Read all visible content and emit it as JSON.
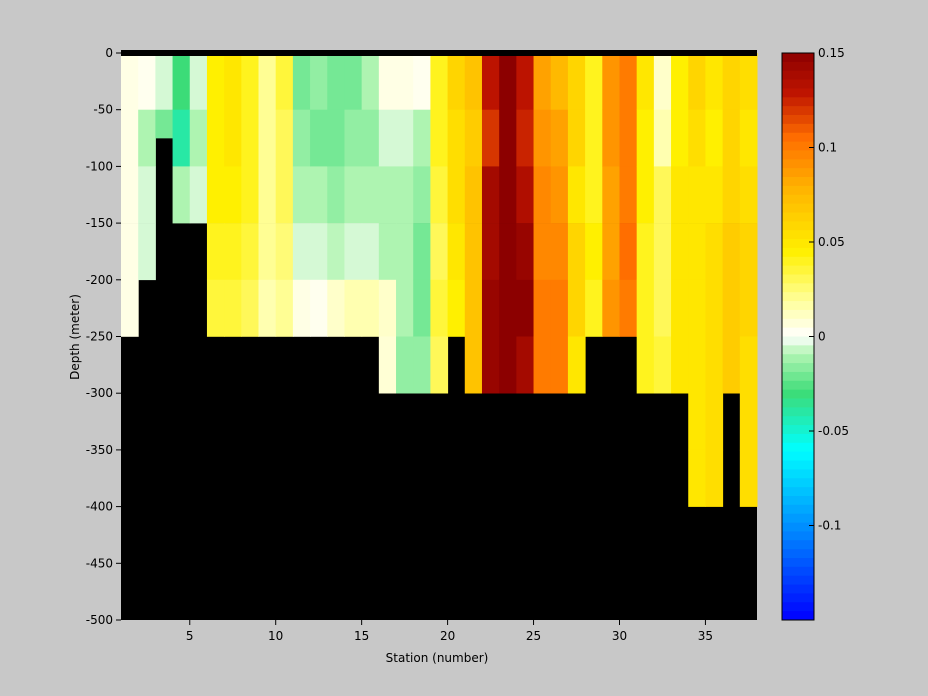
{
  "chart_data": {
    "type": "heatmap",
    "title": "",
    "xlabel": "Station (number)",
    "ylabel": "Depth (meter)",
    "xlim": [
      1,
      38
    ],
    "ylim": [
      -500,
      0
    ],
    "xticks": [
      5,
      10,
      15,
      20,
      25,
      30,
      35
    ],
    "yticks": [
      0,
      -50,
      -100,
      -150,
      -200,
      -250,
      -300,
      -350,
      -400,
      -450,
      -500
    ],
    "x_tick_labels": [
      "5",
      "10",
      "15",
      "20",
      "25",
      "30",
      "35"
    ],
    "y_tick_labels": [
      "0",
      "-50",
      "-100",
      "-150",
      "-200",
      "-250",
      "-300",
      "-350",
      "-400",
      "-450",
      "-500"
    ],
    "colorbar": {
      "range": [
        -0.15,
        0.15
      ],
      "ticks": [
        0.15,
        0.1,
        0.05,
        0,
        -0.05,
        -0.1
      ],
      "tick_labels": [
        "0.15",
        "0.1",
        "0.05",
        "0",
        "-0.05",
        "-0.1"
      ],
      "colormap": "blue-cyan-green-white-yellow-orange-red-darkred"
    },
    "mask_color": "#000000",
    "background": "#c8c8c8",
    "station_count": 37,
    "profiles": [
      {
        "station": 1,
        "max_depth": 250,
        "values": [
          0.005,
          0.005,
          0.005,
          0.005,
          0.005
        ]
      },
      {
        "station": 2,
        "max_depth": 200,
        "values": [
          0.003,
          -0.01,
          -0.005,
          -0.005
        ]
      },
      {
        "station": 3,
        "max_depth": 75,
        "values": [
          -0.005,
          -0.02
        ]
      },
      {
        "station": 4,
        "max_depth": 150,
        "values": [
          -0.03,
          -0.04,
          -0.01
        ]
      },
      {
        "station": 5,
        "max_depth": 150,
        "values": [
          -0.005,
          -0.01,
          -0.005
        ]
      },
      {
        "station": 6,
        "max_depth": 250,
        "values": [
          0.045,
          0.045,
          0.045,
          0.04,
          0.035
        ]
      },
      {
        "station": 7,
        "max_depth": 250,
        "values": [
          0.05,
          0.05,
          0.045,
          0.04,
          0.035
        ]
      },
      {
        "station": 8,
        "max_depth": 250,
        "values": [
          0.04,
          0.04,
          0.04,
          0.035,
          0.03
        ]
      },
      {
        "station": 9,
        "max_depth": 250,
        "values": [
          0.02,
          0.02,
          0.02,
          0.02,
          0.015
        ]
      },
      {
        "station": 10,
        "max_depth": 250,
        "values": [
          0.035,
          0.03,
          0.03,
          0.025,
          0.02
        ]
      },
      {
        "station": 11,
        "max_depth": 250,
        "values": [
          -0.02,
          -0.015,
          -0.01,
          -0.005,
          0.005
        ]
      },
      {
        "station": 12,
        "max_depth": 250,
        "values": [
          -0.015,
          -0.02,
          -0.01,
          -0.005,
          0.003
        ]
      },
      {
        "station": 13,
        "max_depth": 250,
        "values": [
          -0.02,
          -0.02,
          -0.015,
          -0.008,
          0.01
        ]
      },
      {
        "station": 14,
        "max_depth": 250,
        "values": [
          -0.02,
          -0.015,
          -0.01,
          -0.005,
          0.015
        ]
      },
      {
        "station": 15,
        "max_depth": 250,
        "values": [
          -0.01,
          -0.015,
          -0.01,
          -0.005,
          0.015
        ]
      },
      {
        "station": 16,
        "max_depth": 300,
        "values": [
          0.005,
          -0.005,
          -0.01,
          -0.01,
          0.01,
          0.008
        ]
      },
      {
        "station": 17,
        "max_depth": 300,
        "values": [
          0.005,
          -0.005,
          -0.01,
          -0.01,
          -0.01,
          -0.015
        ]
      },
      {
        "station": 18,
        "max_depth": 300,
        "values": [
          0.003,
          -0.01,
          -0.015,
          -0.02,
          -0.02,
          -0.015
        ]
      },
      {
        "station": 19,
        "max_depth": 300,
        "values": [
          0.04,
          0.04,
          0.035,
          0.03,
          0.035,
          0.03
        ]
      },
      {
        "station": 20,
        "max_depth": 250,
        "values": [
          0.06,
          0.055,
          0.055,
          0.05,
          0.045
        ]
      },
      {
        "station": 21,
        "max_depth": 300,
        "values": [
          0.07,
          0.065,
          0.07,
          0.07,
          0.07,
          0.07
        ]
      },
      {
        "station": 22,
        "max_depth": 300,
        "values": [
          0.13,
          0.12,
          0.14,
          0.14,
          0.145,
          0.145
        ]
      },
      {
        "station": 23,
        "max_depth": 300,
        "values": [
          0.15,
          0.15,
          0.15,
          0.15,
          0.15,
          0.15
        ]
      },
      {
        "station": 24,
        "max_depth": 300,
        "values": [
          0.13,
          0.125,
          0.135,
          0.145,
          0.15,
          0.14
        ]
      },
      {
        "station": 25,
        "max_depth": 300,
        "values": [
          0.085,
          0.09,
          0.095,
          0.095,
          0.1,
          0.1
        ]
      },
      {
        "station": 26,
        "max_depth": 300,
        "values": [
          0.075,
          0.085,
          0.09,
          0.095,
          0.1,
          0.1
        ]
      },
      {
        "station": 27,
        "max_depth": 300,
        "values": [
          0.06,
          0.06,
          0.05,
          0.06,
          0.06,
          0.05
        ]
      },
      {
        "station": 28,
        "max_depth": 250,
        "values": [
          0.04,
          0.04,
          0.04,
          0.045,
          0.04
        ]
      },
      {
        "station": 29,
        "max_depth": 250,
        "values": [
          0.09,
          0.09,
          0.085,
          0.085,
          0.09
        ]
      },
      {
        "station": 30,
        "max_depth": 250,
        "values": [
          0.1,
          0.1,
          0.1,
          0.105,
          0.1
        ]
      },
      {
        "station": 31,
        "max_depth": 300,
        "values": [
          0.05,
          0.045,
          0.045,
          0.04,
          0.04,
          0.04
        ]
      },
      {
        "station": 32,
        "max_depth": 300,
        "values": [
          0.01,
          0.015,
          0.03,
          0.03,
          0.03,
          0.035
        ]
      },
      {
        "station": 33,
        "max_depth": 300,
        "values": [
          0.045,
          0.045,
          0.05,
          0.05,
          0.05,
          0.05
        ]
      },
      {
        "station": 34,
        "max_depth": 400,
        "values": [
          0.06,
          0.055,
          0.05,
          0.05,
          0.05,
          0.05,
          0.05,
          0.05
        ]
      },
      {
        "station": 35,
        "max_depth": 400,
        "values": [
          0.05,
          0.045,
          0.05,
          0.055,
          0.055,
          0.055,
          0.055,
          0.055
        ]
      },
      {
        "station": 36,
        "max_depth": 300,
        "values": [
          0.06,
          0.06,
          0.06,
          0.065,
          0.065,
          0.065
        ]
      },
      {
        "station": 37,
        "max_depth": 400,
        "values": [
          0.055,
          0.05,
          0.055,
          0.06,
          0.06,
          0.055,
          0.055,
          0.055
        ]
      }
    ]
  }
}
